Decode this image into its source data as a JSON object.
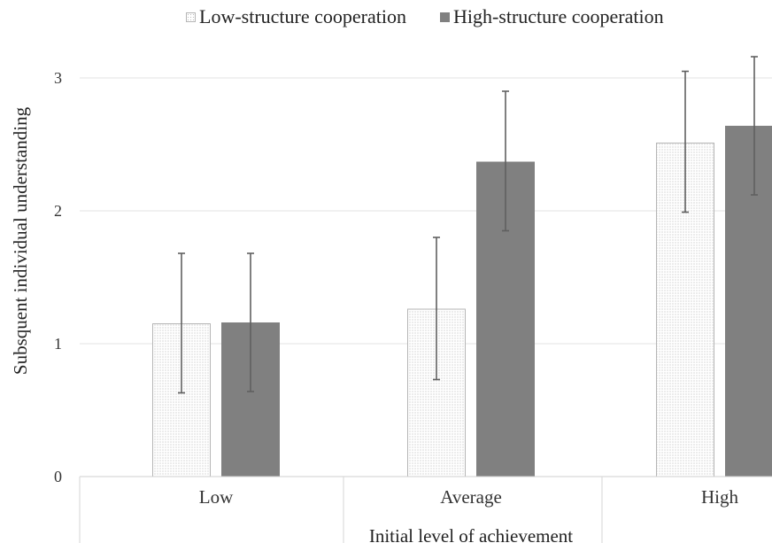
{
  "legend": {
    "low_label": "Low-structure cooperation",
    "high_label": "High-structure cooperation"
  },
  "colors": {
    "low_fill": "#ffffff",
    "low_dots": "#bdbdbd",
    "low_border": "#b5b5b5",
    "high_fill": "#808080",
    "error_bar": "#606060",
    "grid": "#e3e3e3"
  },
  "chart_data": {
    "type": "bar",
    "categories": [
      "Low",
      "Average",
      "High"
    ],
    "series": [
      {
        "name": "Low-structure cooperation",
        "values": [
          1.15,
          1.26,
          2.51
        ],
        "error_low": [
          0.63,
          0.73,
          1.99
        ],
        "error_high": [
          1.68,
          1.8,
          3.05
        ]
      },
      {
        "name": "High-structure cooperation",
        "values": [
          1.16,
          2.37,
          2.64
        ],
        "error_low": [
          0.64,
          1.85,
          2.12
        ],
        "error_high": [
          1.68,
          2.9,
          3.16
        ]
      }
    ],
    "xlabel": "Initial level of achievement",
    "ylabel": "Subsquent individual understanding",
    "ylim": [
      0,
      3
    ],
    "yticks": [
      "0",
      "1",
      "2",
      "3"
    ],
    "grid": true,
    "legend_position": "top"
  }
}
